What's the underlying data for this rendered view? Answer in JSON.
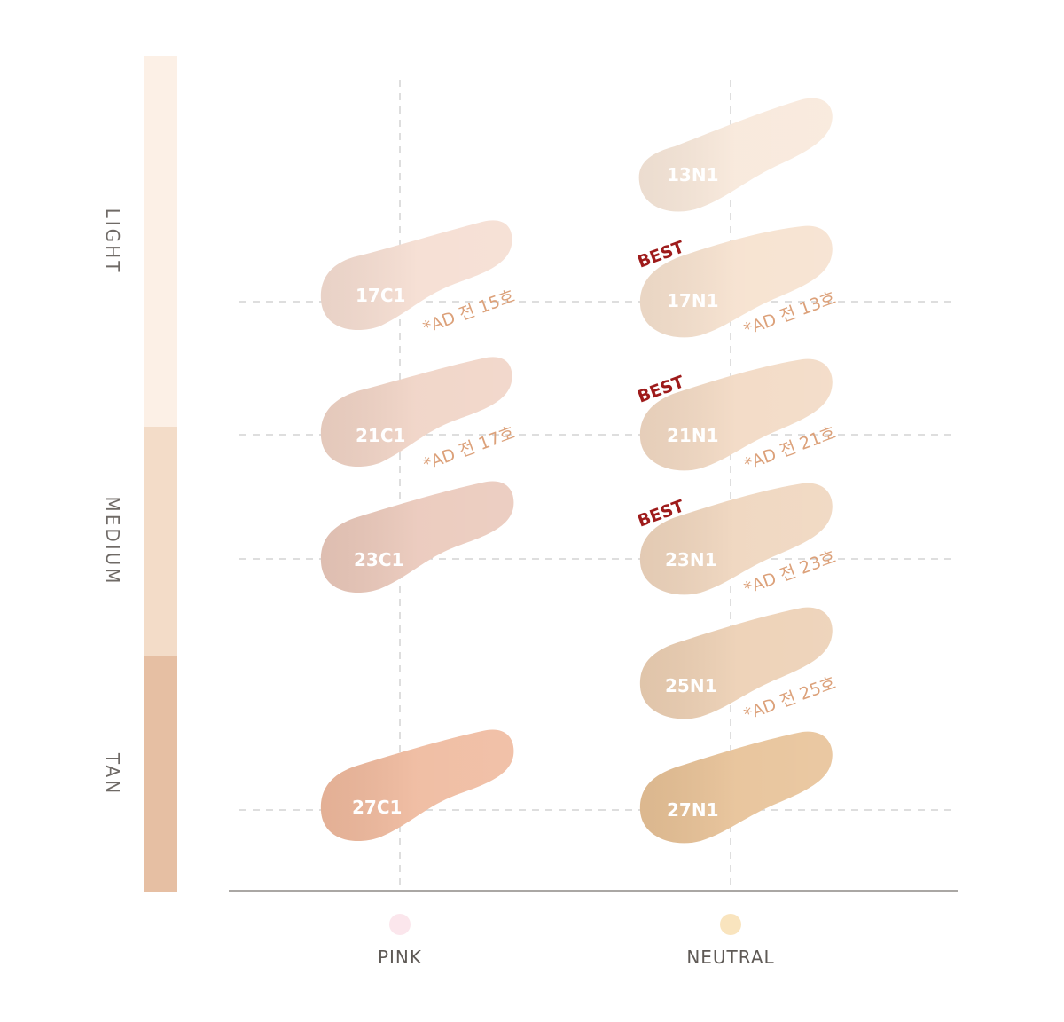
{
  "levels": [
    {
      "label": "LIGHT",
      "color": "#fcf0e6"
    },
    {
      "label": "MEDIUM",
      "color": "#f3dcc8"
    },
    {
      "label": "TAN",
      "color": "#e6bfa3"
    }
  ],
  "tones": [
    {
      "label": "PINK",
      "dot_color": "#fbe6ec"
    },
    {
      "label": "NEUTRAL",
      "dot_color": "#f9e4be"
    }
  ],
  "shades": [
    {
      "id": "13N1",
      "label": "13N1",
      "tone": "NEUTRAL",
      "color": "#f8e8da",
      "best": false,
      "ad": ""
    },
    {
      "id": "17C1",
      "label": "17C1",
      "tone": "PINK",
      "color": "#f5ddd1",
      "best": false,
      "ad": "*AD 전 15호"
    },
    {
      "id": "17N1",
      "label": "17N1",
      "tone": "NEUTRAL",
      "color": "#f6e1ce",
      "best": true,
      "ad": "*AD 전 13호"
    },
    {
      "id": "21C1",
      "label": "21C1",
      "tone": "PINK",
      "color": "#f0d3c5",
      "best": false,
      "ad": "*AD 전 17호"
    },
    {
      "id": "21N1",
      "label": "21N1",
      "tone": "NEUTRAL",
      "color": "#f2d9c3",
      "best": true,
      "ad": "*AD 전 21호"
    },
    {
      "id": "23C1",
      "label": "23C1",
      "tone": "PINK",
      "color": "#eac8ba",
      "best": false,
      "ad": ""
    },
    {
      "id": "23N1",
      "label": "23N1",
      "tone": "NEUTRAL",
      "color": "#efd5bd",
      "best": true,
      "ad": "*AD 전 23호"
    },
    {
      "id": "25N1",
      "label": "25N1",
      "tone": "NEUTRAL",
      "color": "#eccfb3",
      "best": false,
      "ad": "*AD 전 25호"
    },
    {
      "id": "27C1",
      "label": "27C1",
      "tone": "PINK",
      "color": "#efb99d",
      "best": false,
      "ad": ""
    },
    {
      "id": "27N1",
      "label": "27N1",
      "tone": "NEUTRAL",
      "color": "#e7c196",
      "best": false,
      "ad": ""
    }
  ],
  "best_label": "BEST"
}
